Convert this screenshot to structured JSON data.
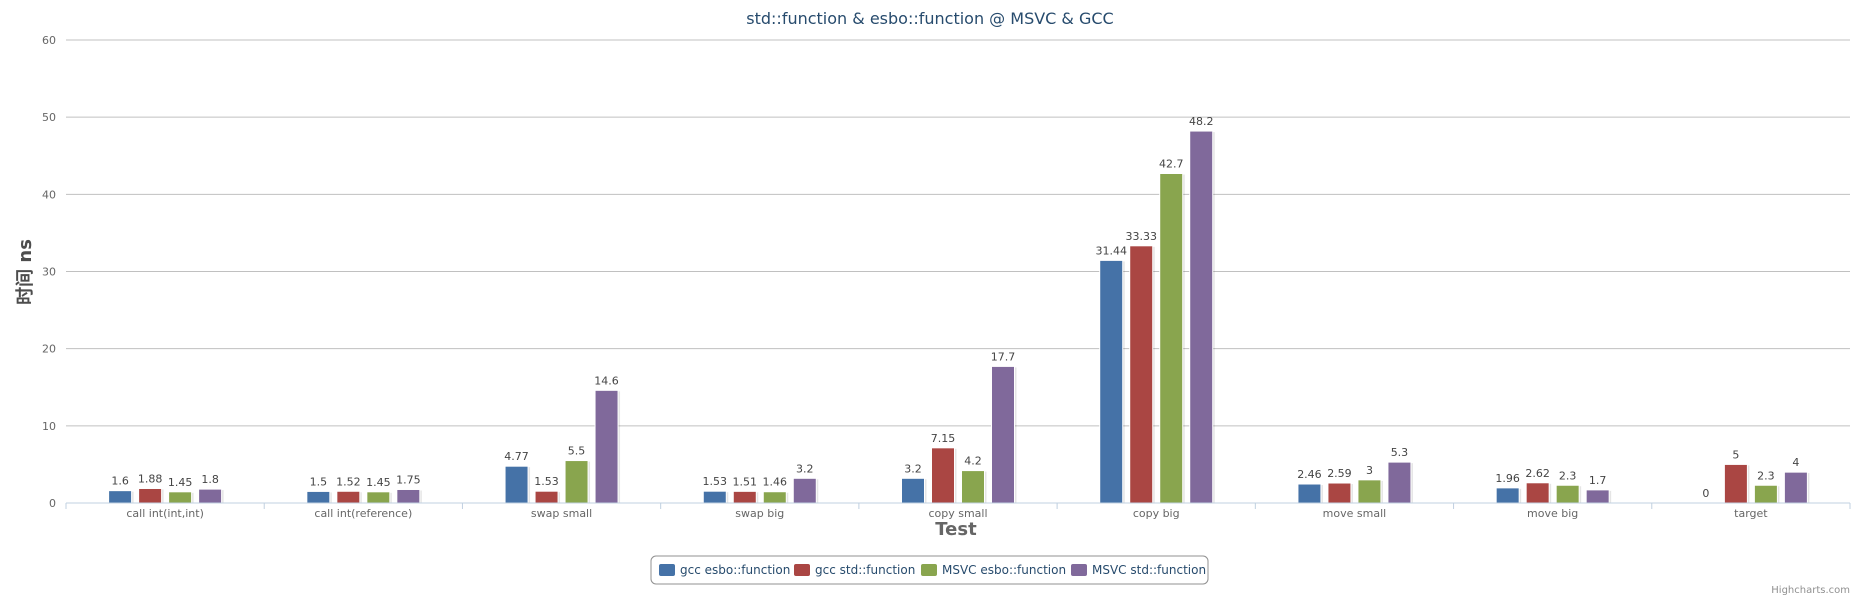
{
  "chart_data": {
    "type": "bar",
    "title": "std::function & esbo::function @ MSVC & GCC",
    "xlabel": "Test",
    "ylabel": "时间 ns",
    "ylim": [
      0,
      60
    ],
    "yticks": [
      "0",
      "10",
      "20",
      "30",
      "40",
      "50",
      "60"
    ],
    "grid": true,
    "legend_position": "bottom-center",
    "categories": [
      "call int(int,int)",
      "call int(reference)",
      "swap small",
      "swap big",
      "copy small",
      "copy big",
      "move small",
      "move big",
      "target"
    ],
    "series": [
      {
        "name": "gcc esbo::function",
        "color": "#4572A7",
        "values": [
          1.6,
          1.5,
          4.77,
          1.53,
          3.2,
          31.44,
          2.46,
          1.96,
          0
        ],
        "labels": [
          "1.6",
          "1.5",
          "4.77",
          "1.53",
          "3.2",
          "31.44",
          "2.46",
          "1.96",
          "0"
        ]
      },
      {
        "name": "gcc std::function",
        "color": "#AA4643",
        "values": [
          1.88,
          1.52,
          1.53,
          1.51,
          7.15,
          33.33,
          2.59,
          2.62,
          5
        ],
        "labels": [
          "1.88",
          "1.52",
          "1.53",
          "1.51",
          "7.15",
          "33.33",
          "2.59",
          "2.62",
          "5"
        ]
      },
      {
        "name": "MSVC esbo::function",
        "color": "#89A54E",
        "values": [
          1.45,
          1.45,
          5.5,
          1.46,
          4.2,
          42.7,
          3,
          2.3,
          2.3
        ],
        "labels": [
          "1.45",
          "1.45",
          "5.5",
          "1.46",
          "4.2",
          "42.7",
          "3",
          "2.3",
          "2.3"
        ]
      },
      {
        "name": "MSVC std::function",
        "color": "#80699B",
        "values": [
          1.8,
          1.75,
          14.6,
          3.2,
          17.7,
          48.2,
          5.3,
          1.7,
          4
        ],
        "labels": [
          "1.8",
          "1.75",
          "14.6",
          "3.2",
          "17.7",
          "48.2",
          "5.3",
          "1.7",
          "4"
        ]
      }
    ]
  },
  "credits": "Highcharts.com"
}
